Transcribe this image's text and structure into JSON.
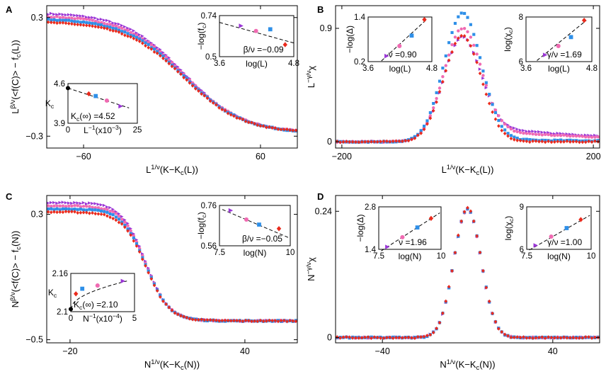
{
  "colors": {
    "purple": "#9a35d6",
    "pink": "#f06ab2",
    "blue": "#2e8fe8",
    "red": "#ea2a1c"
  },
  "panels": [
    {
      "letter": "A",
      "xlabel": "L^{1/ν}(K−K_c(L))",
      "ylabel": "L^{β/ν}(<f(C)> − f_c(L))",
      "xlim": [
        -85,
        85
      ],
      "ylim": [
        -0.36,
        0.36
      ],
      "xticks": [
        {
          "v": -60,
          "t": "−60"
        },
        {
          "v": 60,
          "t": "60"
        }
      ],
      "yticks": [
        {
          "v": 0.3,
          "t": "0.3"
        },
        {
          "v": -0.3,
          "t": "−0.3"
        }
      ],
      "curve": {
        "kind": "tanh",
        "x0": 8,
        "w": 40,
        "top": [
          0.325,
          0.31,
          0.295,
          0.28
        ],
        "bot": -0.285
      },
      "insets": [
        {
          "pos": "top-right",
          "xlabel": "log(L)",
          "ylabel": "−log(f_c)",
          "annotation": "β/ν =−0.09",
          "xlim": [
            3.6,
            4.8
          ],
          "ylim": [
            0.5,
            0.74
          ],
          "xticks": [
            {
              "v": 3.6,
              "t": "3.6"
            },
            {
              "v": 4.8,
              "t": "4.8"
            }
          ],
          "yticks": [
            {
              "v": 0.74,
              "t": "0.74"
            },
            {
              "v": 0.5,
              "t": "0.5"
            }
          ],
          "points": [
            {
              "x": 3.95,
              "y": 0.68,
              "c": "purple",
              "m": "tri"
            },
            {
              "x": 4.19,
              "y": 0.65,
              "c": "pink",
              "m": "circ"
            },
            {
              "x": 4.42,
              "y": 0.66,
              "c": "blue",
              "m": "sq"
            },
            {
              "x": 4.66,
              "y": 0.57,
              "c": "red",
              "m": "dia"
            }
          ],
          "fit": [
            [
              3.6,
              0.7
            ],
            [
              4.8,
              0.58
            ]
          ]
        },
        {
          "pos": "bottom-left",
          "xlabel": "L^{−1}(x10^{−3})",
          "ylabel": "K_c",
          "annotation": "K_c(∞) =4.52",
          "xlim": [
            0,
            25
          ],
          "ylim": [
            3.9,
            4.6
          ],
          "xticks": [
            {
              "v": 0,
              "t": "0"
            },
            {
              "v": 25,
              "t": "25"
            }
          ],
          "yticks": [
            {
              "v": 4.6,
              "t": "4.6"
            },
            {
              "v": 3.9,
              "t": "3.9"
            }
          ],
          "points": [
            {
              "x": 0,
              "y": 4.52,
              "c": "black",
              "m": "circ"
            },
            {
              "x": 7.5,
              "y": 4.42,
              "c": "red",
              "m": "dia"
            },
            {
              "x": 10,
              "y": 4.38,
              "c": "blue",
              "m": "sq"
            },
            {
              "x": 14,
              "y": 4.3,
              "c": "pink",
              "m": "circ"
            },
            {
              "x": 19,
              "y": 4.2,
              "c": "purple",
              "m": "tri"
            }
          ],
          "fit": [
            [
              0,
              4.52
            ],
            [
              22,
              4.17
            ]
          ]
        }
      ]
    },
    {
      "letter": "B",
      "xlabel": "L^{1/ν}(K−K_c(L))",
      "ylabel": "L^{−γ/ν}χ",
      "xlim": [
        -210,
        210
      ],
      "ylim": [
        -0.05,
        1.08
      ],
      "xticks": [
        {
          "v": -200,
          "t": "−200"
        },
        {
          "v": 200,
          "t": "200"
        }
      ],
      "yticks": [
        {
          "v": 0,
          "t": "0"
        },
        {
          "v": 0.9,
          "t": "0.9"
        }
      ],
      "curve": {
        "kind": "peak",
        "x0": -8,
        "w": 42,
        "top": [
          0.83,
          0.9,
          1.02,
          0.84
        ],
        "tail": [
          0.13,
          0.1,
          0.02,
          0.0
        ]
      },
      "insets": [
        {
          "pos": "top-left",
          "xlabel": "log(L)",
          "ylabel": "−log(Δ)",
          "annotation": "ν =0.90",
          "xlim": [
            3.6,
            4.8
          ],
          "ylim": [
            0.2,
            1.4
          ],
          "xticks": [
            {
              "v": 3.6,
              "t": "3.6"
            },
            {
              "v": 4.8,
              "t": "4.8"
            }
          ],
          "yticks": [
            {
              "v": 1.4,
              "t": "1.4"
            },
            {
              "v": 0.2,
              "t": "0.2"
            }
          ],
          "points": [
            {
              "x": 3.95,
              "y": 0.35,
              "c": "purple",
              "m": "tri"
            },
            {
              "x": 4.19,
              "y": 0.62,
              "c": "pink",
              "m": "circ"
            },
            {
              "x": 4.42,
              "y": 0.9,
              "c": "blue",
              "m": "sq"
            },
            {
              "x": 4.66,
              "y": 1.33,
              "c": "red",
              "m": "dia"
            }
          ],
          "fit": [
            [
              3.85,
              0.22
            ],
            [
              4.7,
              1.33
            ]
          ]
        },
        {
          "pos": "top-right",
          "xlabel": "log(L)",
          "ylabel": "log(χ_c)",
          "annotation": "γ/ν =1.69",
          "xlim": [
            3.6,
            4.8
          ],
          "ylim": [
            6,
            8
          ],
          "xticks": [
            {
              "v": 3.6,
              "t": "3.6"
            },
            {
              "v": 4.8,
              "t": "4.8"
            }
          ],
          "yticks": [
            {
              "v": 8,
              "t": "8"
            },
            {
              "v": 6,
              "t": "6"
            }
          ],
          "points": [
            {
              "x": 3.95,
              "y": 6.3,
              "c": "purple",
              "m": "tri"
            },
            {
              "x": 4.19,
              "y": 6.7,
              "c": "pink",
              "m": "circ"
            },
            {
              "x": 4.42,
              "y": 7.1,
              "c": "blue",
              "m": "sq"
            },
            {
              "x": 4.66,
              "y": 7.85,
              "c": "red",
              "m": "dia"
            }
          ],
          "fit": [
            [
              3.8,
              6.05
            ],
            [
              4.7,
              7.85
            ]
          ]
        }
      ]
    },
    {
      "letter": "C",
      "xlabel": "N^{1/ν}(K−K_c(N))",
      "ylabel": "N^{β/ν}(<f(C)> − f_c(N))",
      "xlim": [
        -28,
        58
      ],
      "ylim": [
        -0.52,
        0.42
      ],
      "xticks": [
        {
          "v": -20,
          "t": "−20"
        },
        {
          "v": 40,
          "t": "40"
        }
      ],
      "yticks": [
        {
          "v": 0.3,
          "t": "0.3"
        },
        {
          "v": -0.5,
          "t": "−0.5"
        }
      ],
      "curve": {
        "kind": "tanh",
        "x0": 6,
        "w": 8,
        "top": [
          0.375,
          0.355,
          0.335,
          0.315
        ],
        "bot": -0.38
      },
      "insets": [
        {
          "pos": "top-right",
          "xlabel": "log(N)",
          "ylabel": "−log(f_c)",
          "annotation": "β/ν =−0.05",
          "xlim": [
            7.5,
            10
          ],
          "ylim": [
            0.56,
            0.76
          ],
          "xticks": [
            {
              "v": 7.5,
              "t": "7.5"
            },
            {
              "v": 10,
              "t": "10"
            }
          ],
          "yticks": [
            {
              "v": 0.76,
              "t": "0.76"
            },
            {
              "v": 0.56,
              "t": "0.56"
            }
          ],
          "points": [
            {
              "x": 7.9,
              "y": 0.735,
              "c": "purple",
              "m": "tri"
            },
            {
              "x": 8.45,
              "y": 0.69,
              "c": "pink",
              "m": "circ"
            },
            {
              "x": 8.9,
              "y": 0.665,
              "c": "blue",
              "m": "sq"
            },
            {
              "x": 9.6,
              "y": 0.645,
              "c": "red",
              "m": "dia"
            }
          ],
          "fit": [
            [
              7.6,
              0.74
            ],
            [
              9.95,
              0.6
            ]
          ]
        },
        {
          "pos": "bottom-left",
          "xlabel": "N^{−1}(x10^{−4})",
          "ylabel": "K_c",
          "annotation": "K_c(∞) =2.10",
          "xlim": [
            0,
            5
          ],
          "ylim": [
            2.1,
            2.16
          ],
          "xticks": [
            {
              "v": 0,
              "t": "0"
            },
            {
              "v": 5,
              "t": "5"
            }
          ],
          "yticks": [
            {
              "v": 2.16,
              "t": "2.16"
            },
            {
              "v": 2.1,
              "t": "2.1"
            }
          ],
          "points": [
            {
              "x": 0,
              "y": 2.104,
              "c": "black",
              "m": "circ"
            },
            {
              "x": 0.4,
              "y": 2.128,
              "c": "red",
              "m": "dia"
            },
            {
              "x": 0.9,
              "y": 2.136,
              "c": "blue",
              "m": "sq"
            },
            {
              "x": 2.1,
              "y": 2.141,
              "c": "pink",
              "m": "circ"
            },
            {
              "x": 4.1,
              "y": 2.148,
              "c": "purple",
              "m": "tri"
            }
          ],
          "fit": "sqrt"
        }
      ]
    },
    {
      "letter": "D",
      "xlabel": "N^{1/ν}(K−K_c(N))",
      "ylabel": "N^{−γ/ν}χ",
      "xlim": [
        -62,
        62
      ],
      "ylim": [
        -0.01,
        0.27
      ],
      "xticks": [
        {
          "v": -40,
          "t": "−40"
        },
        {
          "v": 40,
          "t": "40"
        }
      ],
      "yticks": [
        {
          "v": 0,
          "t": "0"
        },
        {
          "v": 0.24,
          "t": "0.24"
        }
      ],
      "curve": {
        "kind": "peak",
        "x0": 0,
        "w": 9,
        "top": [
          0.244,
          0.244,
          0.245,
          0.246
        ],
        "tail": [
          0,
          0,
          0,
          0
        ]
      },
      "insets": [
        {
          "pos": "top-left",
          "xlabel": "log(N)",
          "ylabel": "−log(Δ)",
          "annotation": "ν =1.96",
          "xlim": [
            7.5,
            10
          ],
          "ylim": [
            1.4,
            2.8
          ],
          "xticks": [
            {
              "v": 7.5,
              "t": "7.5"
            },
            {
              "v": 10,
              "t": "10"
            }
          ],
          "yticks": [
            {
              "v": 2.8,
              "t": "2.8"
            },
            {
              "v": 1.4,
              "t": "1.4"
            }
          ],
          "points": [
            {
              "x": 7.85,
              "y": 1.48,
              "c": "purple",
              "m": "tri"
            },
            {
              "x": 8.45,
              "y": 1.8,
              "c": "pink",
              "m": "circ"
            },
            {
              "x": 9.05,
              "y": 2.12,
              "c": "blue",
              "m": "sq"
            },
            {
              "x": 9.6,
              "y": 2.42,
              "c": "red",
              "m": "dia"
            }
          ],
          "fit": [
            [
              7.6,
              1.35
            ],
            [
              9.95,
              2.6
            ]
          ]
        },
        {
          "pos": "top-right",
          "xlabel": "log(N)",
          "ylabel": "log(χ_c)",
          "annotation": "γ/ν =1.00",
          "xlim": [
            7.5,
            10
          ],
          "ylim": [
            6,
            9
          ],
          "xticks": [
            {
              "v": 7.5,
              "t": "7.5"
            },
            {
              "v": 10,
              "t": "10"
            }
          ],
          "yticks": [
            {
              "v": 9,
              "t": "9"
            },
            {
              "v": 6,
              "t": "6"
            }
          ],
          "points": [
            {
              "x": 7.85,
              "y": 6.28,
              "c": "purple",
              "m": "tri"
            },
            {
              "x": 8.45,
              "y": 6.9,
              "c": "pink",
              "m": "circ"
            },
            {
              "x": 9.05,
              "y": 7.5,
              "c": "blue",
              "m": "sq"
            },
            {
              "x": 9.6,
              "y": 8.1,
              "c": "red",
              "m": "dia"
            }
          ],
          "fit": [
            [
              7.6,
              5.95
            ],
            [
              9.95,
              8.4
            ]
          ]
        }
      ]
    }
  ],
  "chart_data": [
    {
      "type": "scatter",
      "title": "A",
      "xlabel": "L^{1/ν}(K−K_c(L))",
      "ylabel": "L^{β/ν}(<f(C)> − f_c(L))",
      "xlim": [
        -85,
        85
      ],
      "ylim": [
        -0.36,
        0.36
      ],
      "series": [
        "purple triangles",
        "pink circles",
        "blue squares",
        "red diamonds"
      ],
      "description_values": {
        "plateau_left": [
          0.325,
          0.31,
          0.295,
          0.28
        ],
        "plateau_right": -0.285
      }
    },
    {
      "type": "scatter",
      "title": "B",
      "xlabel": "L^{1/ν}(K−K_c(L))",
      "ylabel": "L^{−γ/ν}χ",
      "xlim": [
        -210,
        210
      ],
      "ylim": [
        -0.05,
        1.08
      ],
      "peaks": [
        0.83,
        0.9,
        1.02,
        0.84
      ]
    },
    {
      "type": "scatter",
      "title": "C",
      "xlabel": "N^{1/ν}(K−K_c(N))",
      "ylabel": "N^{β/ν}(<f(C)> − f_c(N))",
      "xlim": [
        -28,
        58
      ],
      "ylim": [
        -0.52,
        0.42
      ],
      "plateau_left": [
        0.375,
        0.355,
        0.335,
        0.315
      ],
      "plateau_right": -0.38
    },
    {
      "type": "scatter",
      "title": "D",
      "xlabel": "N^{1/ν}(K−K_c(N))",
      "ylabel": "N^{−γ/ν}χ",
      "xlim": [
        -62,
        62
      ],
      "ylim": [
        -0.01,
        0.27
      ],
      "peak": 0.245
    }
  ]
}
